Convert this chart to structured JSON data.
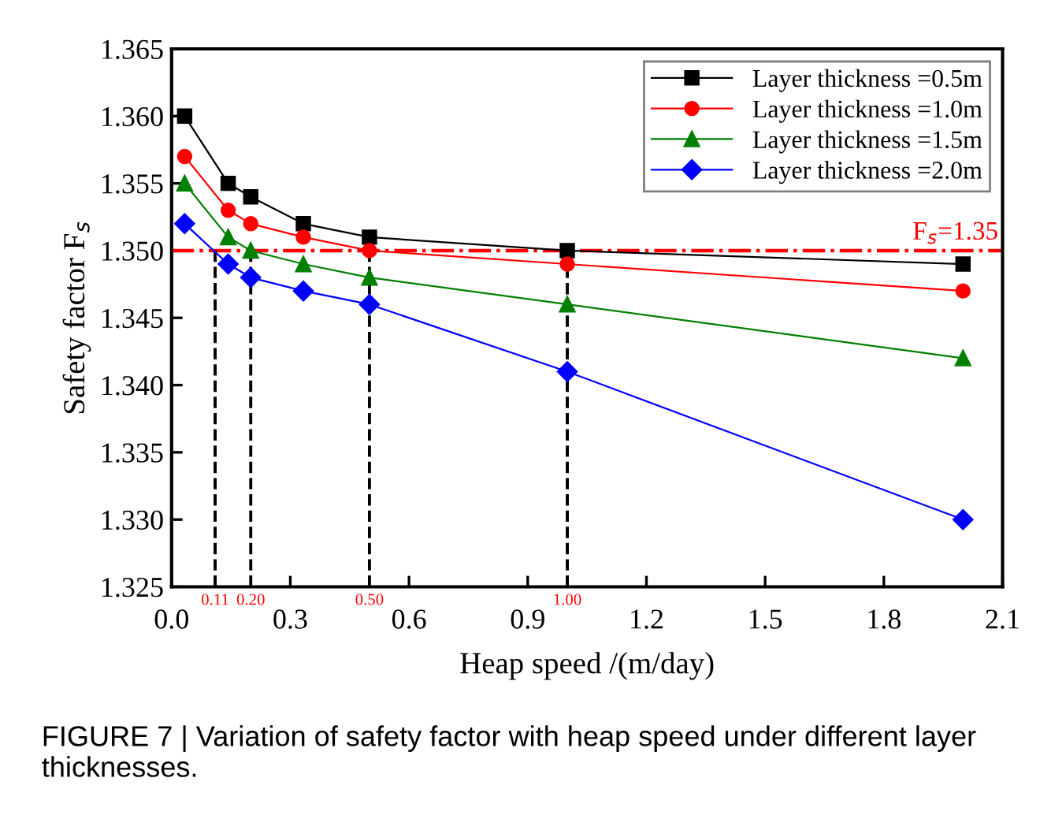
{
  "chart_data": {
    "type": "line",
    "xlabel": "Heap speed /(m/day)",
    "ylabel": "Safety factor F$_{s}$",
    "x": [
      0.033,
      0.143,
      0.2,
      0.333,
      0.5,
      1.0,
      2.0
    ],
    "series": [
      {
        "name": "Layer thickness =0.5m",
        "color": "#000000",
        "marker": "square",
        "values": [
          1.36,
          1.355,
          1.354,
          1.352,
          1.351,
          1.35,
          1.349
        ]
      },
      {
        "name": "Layer thickness =1.0m",
        "color": "#ff0000",
        "marker": "circle",
        "values": [
          1.357,
          1.353,
          1.352,
          1.351,
          1.35,
          1.349,
          1.347
        ]
      },
      {
        "name": "Layer thickness =1.5m",
        "color": "#008000",
        "marker": "triangle",
        "values": [
          1.355,
          1.351,
          1.35,
          1.349,
          1.348,
          1.346,
          1.342
        ]
      },
      {
        "name": "Layer thickness =2.0m",
        "color": "#0000ff",
        "marker": "diamond",
        "values": [
          1.352,
          1.349,
          1.348,
          1.347,
          1.346,
          1.341,
          1.33
        ]
      }
    ],
    "xlim": [
      0.0,
      2.1
    ],
    "xticks": [
      {
        "value": 0.0,
        "label": "0.0"
      },
      0.3,
      0.6,
      0.9,
      1.2,
      1.5,
      1.8,
      2.1
    ],
    "ylim": [
      1.325,
      1.365
    ],
    "yticks": [
      {
        "value": 1.325,
        "label": "1.325"
      },
      {
        "value": 1.33,
        "label": "1.330"
      },
      {
        "value": 1.335,
        "label": "1.335"
      },
      {
        "value": 1.34,
        "label": "1.340"
      },
      {
        "value": 1.345,
        "label": "1.345"
      },
      {
        "value": 1.35,
        "label": "1.350"
      },
      {
        "value": 1.355,
        "label": "1.355"
      },
      {
        "value": 1.36,
        "label": "1.360"
      },
      {
        "value": 1.365,
        "label": "1.365"
      }
    ],
    "ref_lines": [
      {
        "axis": "y",
        "value": 1.35,
        "label": "F$_{s}$=1.35",
        "color": "#ff0000",
        "line_style": "dashdot"
      },
      {
        "axis": "x",
        "value": 0.11,
        "label": "0.11",
        "color": "#000000",
        "line_style": "dashed"
      },
      {
        "axis": "x",
        "value": 0.2,
        "label": "0.20",
        "color": "#000000",
        "line_style": "dashed"
      },
      {
        "axis": "x",
        "value": 0.5,
        "label": "0.50",
        "color": "#000000",
        "line_style": "dashed"
      },
      {
        "axis": "x",
        "value": 1.0,
        "label": "1.00",
        "color": "#000000",
        "line_style": "dashed"
      }
    ],
    "legend": "top right",
    "grid": false,
    "line_style": "solid",
    "annotations": [
      "FIGURE 7 | Variation of safety factor with heap speed under different layer thicknesses."
    ]
  }
}
